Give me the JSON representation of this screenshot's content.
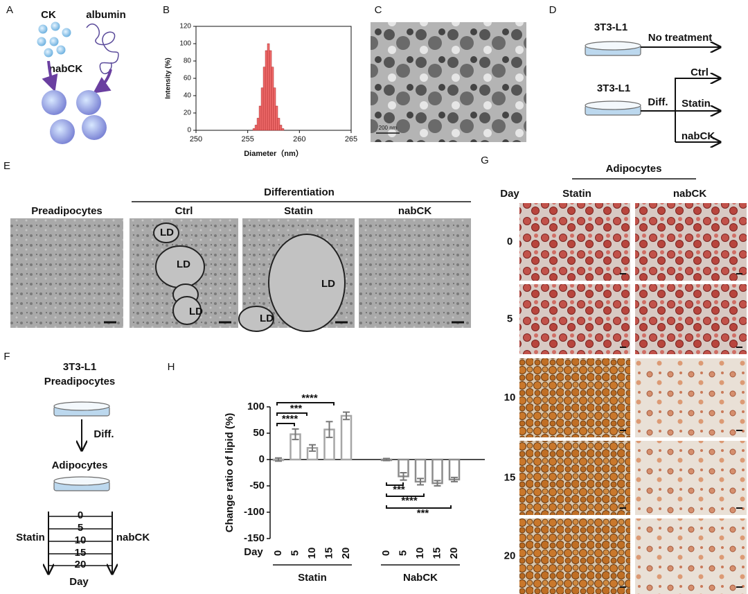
{
  "panel_labels": [
    "A",
    "B",
    "C",
    "D",
    "E",
    "F",
    "G",
    "H"
  ],
  "panel_a": {
    "labels": [
      "CK",
      "albumin",
      "nabCK"
    ]
  },
  "panel_c": {
    "scale_bar": "200 nm"
  },
  "panel_d": {
    "top_cell": "3T3-L1",
    "top_branch": "No treatment",
    "bottom_cell": "3T3-L1",
    "step": "Diff.",
    "branches": [
      "Ctrl",
      "Statin",
      "nabCK"
    ]
  },
  "panel_e": {
    "group": "Differentiation",
    "columns": [
      "Preadipocytes",
      "Ctrl",
      "Statin",
      "nabCK"
    ],
    "droplet": "LD"
  },
  "panel_f": {
    "cell": "3T3-L1",
    "stage1": "Preadipocytes",
    "step": "Diff.",
    "stage2": "Adipocytes",
    "days": [
      "0",
      "5",
      "10",
      "15",
      "20"
    ],
    "left": "Statin",
    "right": "nabCK",
    "axis": "Day"
  },
  "panel_g": {
    "header": "Adipocytes",
    "day_label": "Day",
    "columns": [
      "Statin",
      "nabCK"
    ],
    "days": [
      "0",
      "5",
      "10",
      "15",
      "20"
    ]
  },
  "chart_data": [
    {
      "type": "histogram",
      "ylabel": "Intensity (%)",
      "xlabel": "Diameter（nm）",
      "bins": [
        255.5,
        255.7,
        255.9,
        256.1,
        256.3,
        256.5,
        256.7,
        256.9,
        257.1,
        257.3,
        257.5,
        257.7,
        257.9,
        258.1,
        258.3,
        258.5
      ],
      "values": [
        2,
        6,
        14,
        28,
        49,
        73,
        92,
        100,
        92,
        73,
        49,
        28,
        14,
        6,
        2
      ],
      "color": "#f26d6d",
      "xlim": [
        250,
        265
      ],
      "xticks": [
        250,
        255,
        260,
        265
      ],
      "ylim": [
        0,
        120
      ],
      "yticks": [
        0,
        20,
        40,
        60,
        80,
        100,
        120
      ]
    },
    {
      "type": "bar",
      "ylabel": "Change ratio of lipid (%)",
      "x_label": "Day",
      "categories": [
        "0",
        "5",
        "10",
        "15",
        "20"
      ],
      "series": [
        {
          "name": "Statin",
          "color": "#a6a6a6",
          "values": [
            0,
            48,
            22,
            57,
            83
          ],
          "errors": [
            3,
            10,
            6,
            15,
            7
          ]
        },
        {
          "name": "NabCK",
          "color": "#8c8c8c",
          "values": [
            0,
            -32,
            -42,
            -45,
            -38
          ],
          "errors": [
            2,
            7,
            6,
            5,
            4
          ]
        }
      ],
      "ylim": [
        -150,
        100
      ],
      "yticks": [
        -150,
        -100,
        -50,
        0,
        50,
        100
      ],
      "annotations": [
        "****",
        "***",
        "****",
        "***",
        "****",
        "***"
      ]
    }
  ]
}
